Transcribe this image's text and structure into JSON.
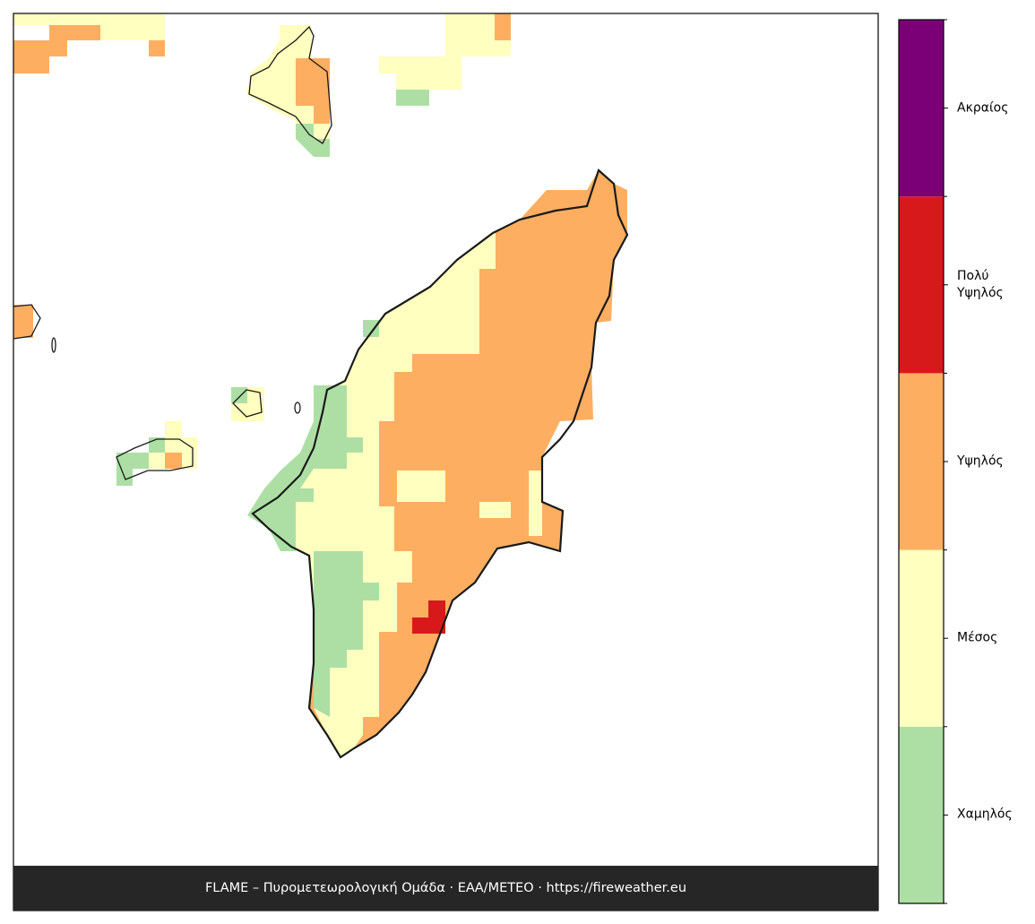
{
  "legend": {
    "levels": [
      {
        "name": "Χαμηλός",
        "color": "#addfa5"
      },
      {
        "name": "Μέσος",
        "color": "#ffffbf"
      },
      {
        "name": "Υψηλός",
        "color": "#fdae61"
      },
      {
        "name": "Πολύ\nΥψηλός",
        "color": "#d7191c"
      },
      {
        "name": "Ακραίος",
        "color": "#7b0077"
      }
    ]
  },
  "footer": "FLAME – Πυρομετεωρολογική Ομάδα · ΕΑΑ/METEO · https://fireweather.eu"
}
